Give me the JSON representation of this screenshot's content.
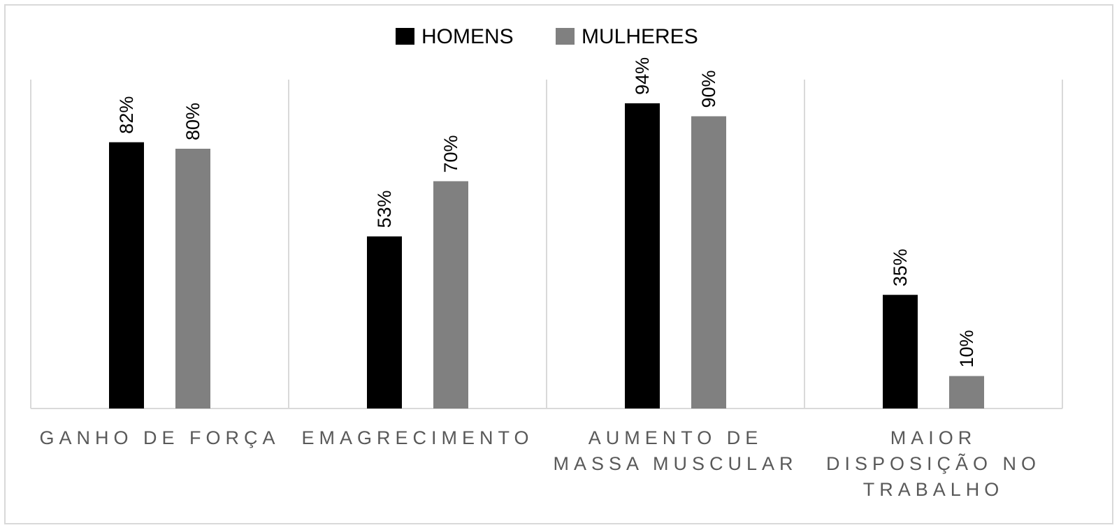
{
  "chart_data": {
    "type": "bar",
    "categories": [
      [
        "GANHO DE FORÇA"
      ],
      [
        "EMAGRECIMENTO"
      ],
      [
        "AUMENTO DE",
        "MASSA MUSCULAR"
      ],
      [
        "MAIOR",
        "DISPOSIÇÃO NO",
        "TRABALHO"
      ]
    ],
    "series": [
      {
        "name": "HOMENS",
        "color": "#000000",
        "values": [
          82,
          53,
          94,
          35
        ]
      },
      {
        "name": "MULHERES",
        "color": "#808080",
        "values": [
          80,
          70,
          90,
          10
        ]
      }
    ],
    "value_suffix": "%",
    "ylim": [
      0,
      100
    ],
    "legend_position": "top-center",
    "grid": "vertical-separators"
  }
}
